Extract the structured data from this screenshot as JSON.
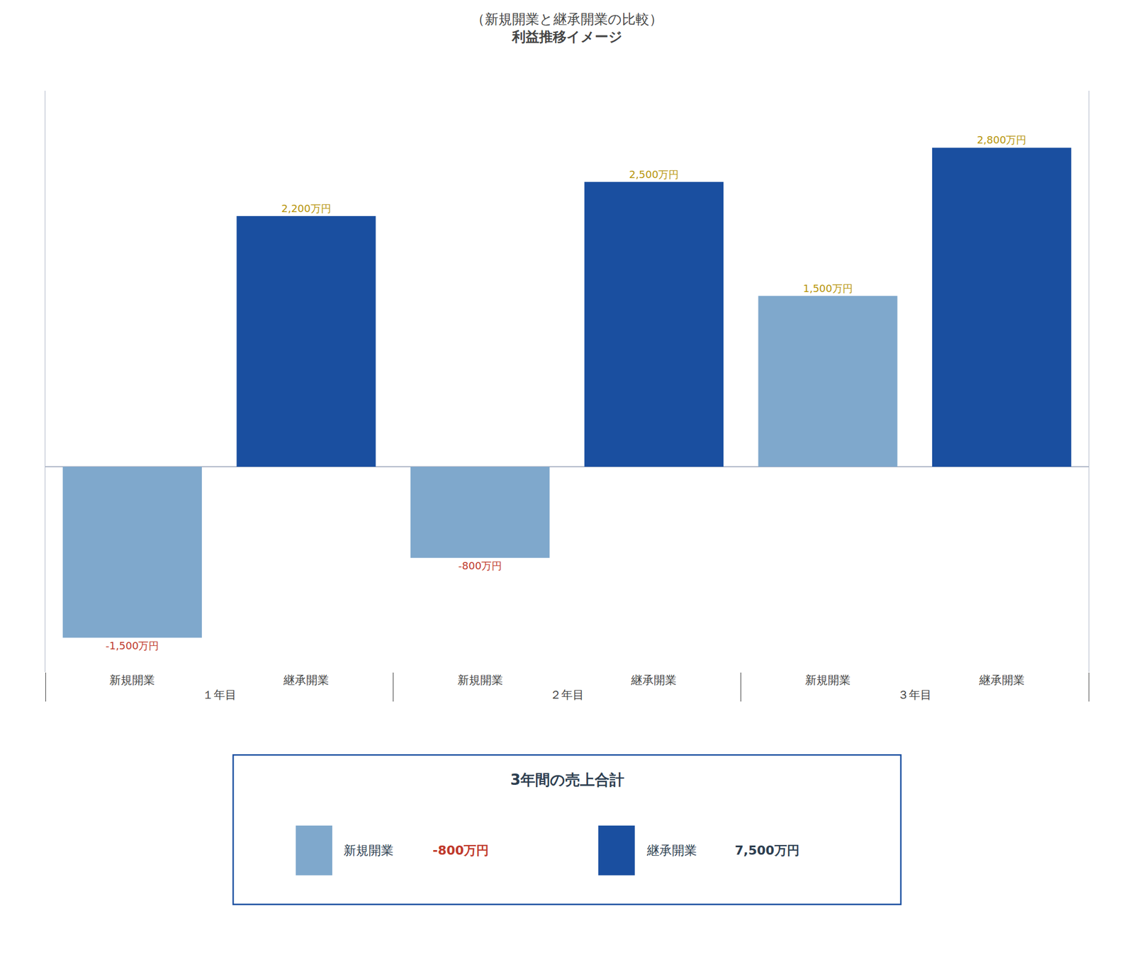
{
  "chart_data": {
    "type": "bar",
    "subtitle": "（新規開業と継承開業の比較）",
    "title": "利益推移イメージ",
    "categories": [
      "１年目",
      "２年目",
      "３年目"
    ],
    "series": [
      {
        "name": "新規開業",
        "color": "#7fa8cc",
        "values": [
          -1500,
          -800,
          1500
        ],
        "value_labels": [
          "-1,500万円",
          "-800万円",
          "1,500万円"
        ]
      },
      {
        "name": "継承開業",
        "color": "#1a4fa0",
        "values": [
          2200,
          2500,
          2800
        ],
        "value_labels": [
          "2,200万円",
          "2,500万円",
          "2,800万円"
        ]
      }
    ],
    "ylim": [
      -1800,
      3300
    ],
    "grid": false,
    "data_labels": true,
    "tick_labels": "x",
    "annotations": [
      {
        "text": "3年間の売上合計"
      },
      {
        "text": "新規開業"
      },
      {
        "text": "-800万円",
        "color": "#c0392b"
      },
      {
        "text": "継承開業"
      },
      {
        "text": "7,500万円"
      }
    ]
  }
}
